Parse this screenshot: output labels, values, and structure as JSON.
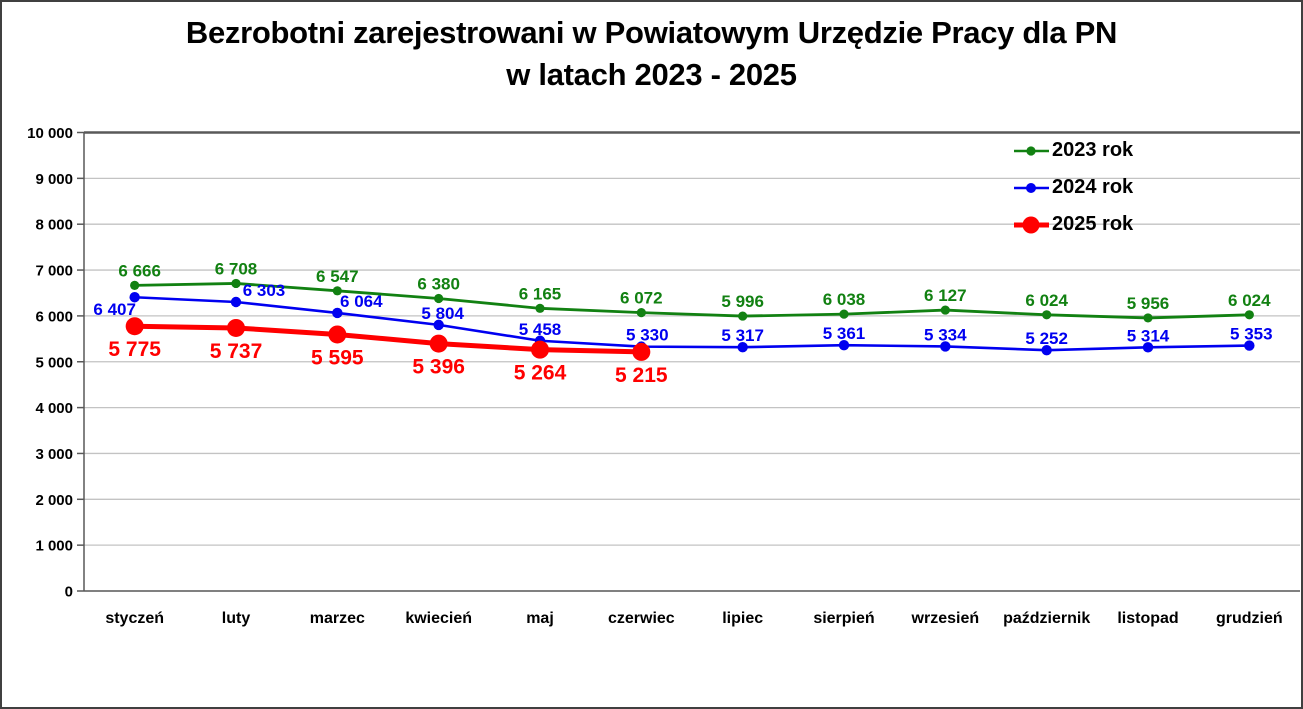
{
  "title": {
    "line1": "Bezrobotni zarejestrowani w Powiatowym Urzędzie Pracy dla PN",
    "line2": "w latach 2023 - 2025"
  },
  "chart_data": {
    "type": "line",
    "title": "Bezrobotni zarejestrowani w Powiatowym Urzędzie Pracy dla PN w latach 2023 - 2025",
    "categories": [
      "styczeń",
      "luty",
      "marzec",
      "kwiecień",
      "maj",
      "czerwiec",
      "lipiec",
      "sierpień",
      "wrzesień",
      "październik",
      "listopad",
      "grudzień"
    ],
    "series": [
      {
        "name": "2023 rok",
        "color": "#128112",
        "values": [
          6666,
          6708,
          6547,
          6380,
          6165,
          6072,
          5996,
          6038,
          6127,
          6024,
          5956,
          6024
        ],
        "labels": [
          "6 666",
          "6 708",
          "6 547",
          "6 380",
          "6 165",
          "6 072",
          "5 996",
          "6 038",
          "6 127",
          "6 024",
          "5 956",
          "6 024"
        ]
      },
      {
        "name": "2024 rok",
        "color": "#0000F0",
        "values": [
          6407,
          6303,
          6064,
          5804,
          5458,
          5330,
          5317,
          5361,
          5334,
          5252,
          5314,
          5353
        ],
        "labels": [
          "6 407",
          "6 303",
          "6 064",
          "5 804",
          "5 458",
          "5 330",
          "5 317",
          "5 361",
          "5 334",
          "5 252",
          "5 314",
          "5 353"
        ]
      },
      {
        "name": "2025 rok",
        "color": "#FF0000",
        "values": [
          5775,
          5737,
          5595,
          5396,
          5264,
          5215
        ],
        "labels": [
          "5 775",
          "5 737",
          "5 595",
          "5 396",
          "5 264",
          "5 215"
        ]
      }
    ],
    "ylim": [
      0,
      10000
    ],
    "ytick_step": 1000,
    "ytick_labels": [
      "0",
      "1 000",
      "2 000",
      "3 000",
      "4 000",
      "5 000",
      "6 000",
      "7 000",
      "8 000",
      "9 000",
      "10 000"
    ],
    "grid": true,
    "legend_position": "top-right",
    "colors": {
      "background": "#FFFFFF",
      "gridline": "#C3C3C3",
      "axis_dark": "#595959",
      "axis_bottom": "#808080",
      "text": "#000000"
    }
  }
}
